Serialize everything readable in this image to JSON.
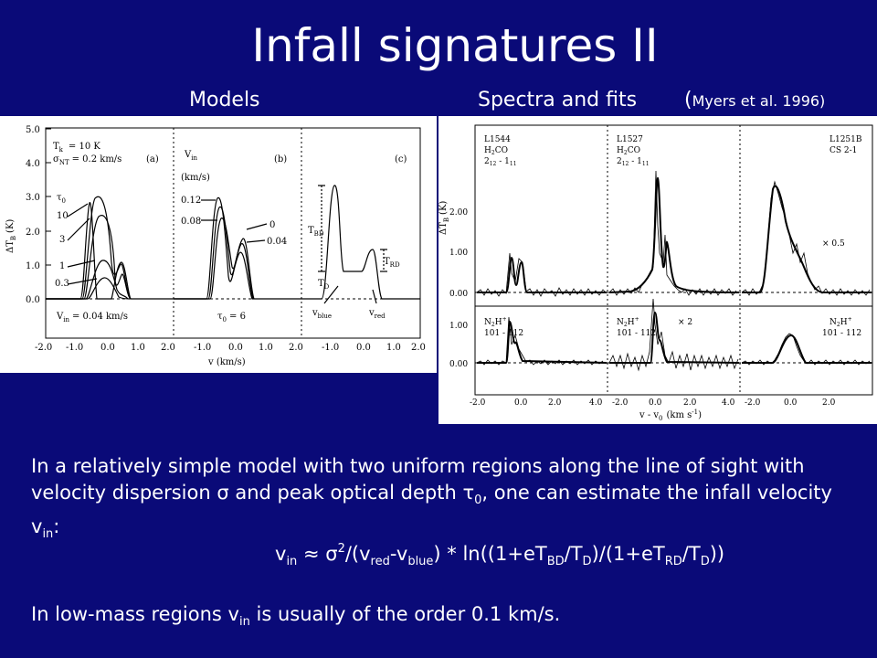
{
  "slide": {
    "title": "Infall signatures II",
    "subtitle_models": "Models",
    "subtitle_spectra": "Spectra and fits",
    "subtitle_ref_open": "(",
    "subtitle_ref_text": "Myers et al. 1996)"
  },
  "left_figure": {
    "panel_a_label": "(a)",
    "panel_b_label": "(b)",
    "panel_c_label": "(c)",
    "tk_label": "T",
    "tk_sub": "k",
    "tk_value": "= 10 K",
    "snt_label": "σ",
    "snt_sub": "NT",
    "snt_value": "= 0.2 km/s",
    "tau_label": "τ",
    "tau_sub": "0",
    "tau_values": [
      "10",
      "3",
      "1",
      "0.3"
    ],
    "vin_a": "V",
    "vin_a_sub": "in",
    "vin_a_value": "= 0.04 km/s",
    "vin_b_label": "V",
    "vin_b_sub": "in",
    "vin_b_unit": "(km/s)",
    "vin_b_values": [
      "0.12",
      "0.08",
      "0",
      "0.04"
    ],
    "tau0_b": "τ",
    "tau0_b_sub": "0",
    "tau0_b_value": "= 6",
    "tbd": "T",
    "tbd_sub": "BD",
    "trd": "T",
    "trd_sub": "RD",
    "td": "T",
    "td_sub": "D",
    "vblue": "v",
    "vblue_sub": "blue",
    "vred": "v",
    "vred_sub": "red",
    "y_label": "ΔT",
    "y_label_sub": "B",
    "y_label_unit": "(K)",
    "x_label": "v  (km/s)",
    "y_ticks": [
      "5.0",
      "4.0",
      "3.0",
      "2.0",
      "1.0",
      "0.0"
    ],
    "x_ticks": [
      "-2.0",
      "-1.0",
      "0.0",
      "1.0",
      "2.0",
      "-1.0",
      "0.0",
      "1.0",
      "2.0",
      "-1.0",
      "0.0",
      "1.0",
      "2.0"
    ]
  },
  "right_figure": {
    "src_1": "L1544",
    "mol_1": "H",
    "mol_1_sub": "2",
    "mol_1_tail": "CO",
    "trans_1": "2",
    "trans_1_sub": "12",
    "trans_1_mid": " - 1",
    "trans_1_sub2": "11",
    "src_2": "L1527",
    "mol_2": "H",
    "mol_2_sub": "2",
    "mol_2_tail": "CO",
    "trans_2": "2",
    "trans_2_sub": "12",
    "trans_2_mid": " - 1",
    "trans_2_sub2": "11",
    "src_3": "L1251B",
    "mol_3": "CS 2-1",
    "scale_1": "× 0.5",
    "scale_2": "× 2",
    "n2h_a": "N",
    "n2h_a_sub": "2",
    "n2h_a_tail": "H",
    "n2h_a_sup": "+",
    "n2h_a_trans": "101 - 112",
    "n2h_b": "N",
    "n2h_b_sub": "2",
    "n2h_b_tail": "H",
    "n2h_b_sup": "+",
    "n2h_b_trans": "101 - 112",
    "n2h_c": "N",
    "n2h_c_sub": "2",
    "n2h_c_tail": "H",
    "n2h_c_sup": "+",
    "n2h_c_trans": "101 - 112",
    "y_label": "ΔT",
    "y_label_sub": "B",
    "y_label_unit": "(K)",
    "y_ticks_top": [
      "2.00",
      "1.00",
      "0.00"
    ],
    "y_ticks_bottom": [
      "1.00",
      "0.00"
    ],
    "x_ticks": [
      "-2.0",
      "0.0",
      "2.0",
      "4.0",
      "-2.0",
      "0.0",
      "2.0",
      "4.0",
      "-2.0",
      "0.0",
      "2.0"
    ],
    "x_label": "v - v",
    "x_label_sub": "0",
    "x_label_unit": "(km s",
    "x_label_sup": "-1",
    "x_label_end": ")"
  },
  "body": {
    "p1_a": "In a relatively simple model with two uniform regions along the line of sight with velocity dispersion ",
    "sigma": "σ",
    "p1_b": " and peak optical depth ",
    "tau": "τ",
    "tau_sub": "0",
    "p1_c": ", one can estimate the infall velocity v",
    "vin_sub": "in",
    "p1_d": ":",
    "formula_v": "v",
    "formula_v_sub": "in",
    "formula_approx": " ≈ ",
    "formula_sigma": "σ",
    "formula_sup": "2",
    "formula_part1": "/(v",
    "formula_red": "red",
    "formula_dash": "-v",
    "formula_blue": "blue",
    "formula_part2": ") * ln((1+eT",
    "formula_bd": "BD",
    "formula_slash1": "/T",
    "formula_d1": "D",
    "formula_part3": ")/(1+eT",
    "formula_rd": "RD",
    "formula_slash2": "/T",
    "formula_d2": "D",
    "formula_end": "))",
    "p2_a": "In low-mass regions v",
    "p2_sub": "in",
    "p2_b": " is usually of the order 0.1 km/s."
  }
}
